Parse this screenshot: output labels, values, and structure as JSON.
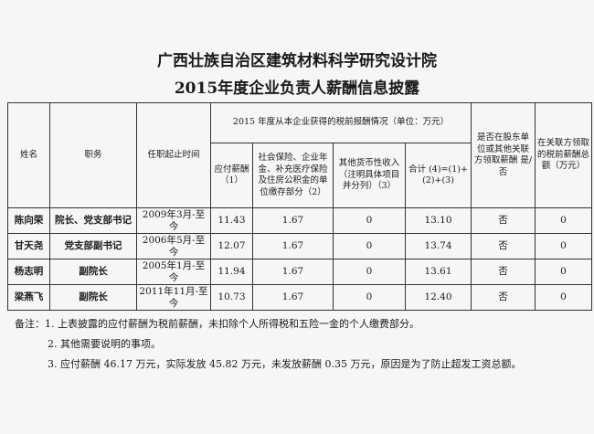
{
  "title": "广西壮族自治区建筑材料科学研究设计院",
  "subtitle": "2015年度企业负责人薪酬信息披露",
  "headers": {
    "name": "姓名",
    "position": "职务",
    "tenure": "任职起止时间",
    "group": "2015 年度从本企业获得的税前报酬情况（单位：万元）",
    "c1": "应付薪酬（1）",
    "c2": "社会保险、企业年金、补充医疗保险及住房公积金的单位缴存部分（2）",
    "c3": "其他货币性收入（注明具体项目并分列）（3）",
    "c4": "合计 (4)=(1)+(2)+(3)",
    "c5": "是否在股东单位或其他关联方领取薪酬 是/否",
    "c6": "在关联方领取的税前薪酬总额（万元）"
  },
  "rows": [
    {
      "name": "陈向荣",
      "position": "院长、党支部书记",
      "tenure": "2009年3月-至今",
      "c1": "11.43",
      "c2": "1.67",
      "c3": "0",
      "c4": "13.10",
      "c5": "否",
      "c6": "0"
    },
    {
      "name": "甘天尧",
      "position": "党支部副书记",
      "tenure": "2006年5月-至今",
      "c1": "12.07",
      "c2": "1.67",
      "c3": "0",
      "c4": "13.74",
      "c5": "否",
      "c6": "0"
    },
    {
      "name": "杨志明",
      "position": "副院长",
      "tenure": "2005年1月-至今",
      "c1": "11.94",
      "c2": "1.67",
      "c3": "0",
      "c4": "13.61",
      "c5": "否",
      "c6": "0"
    },
    {
      "name": "梁燕飞",
      "position": "副院长",
      "tenure": "2011年11月-至今",
      "c1": "10.73",
      "c2": "1.67",
      "c3": "0",
      "c4": "12.40",
      "c5": "否",
      "c6": "0"
    }
  ],
  "notes": [
    "备注：1. 上表披露的应付薪酬为税前薪酬，未扣除个人所得税和五险一金的个人缴费部分。",
    "2. 其他需要说明的事项。",
    "3. 应付薪酬 46.17 万元，实际发放 45.82 万元，未发放薪酬 0.35 万元，原因是为了防止超发工资总额。"
  ]
}
